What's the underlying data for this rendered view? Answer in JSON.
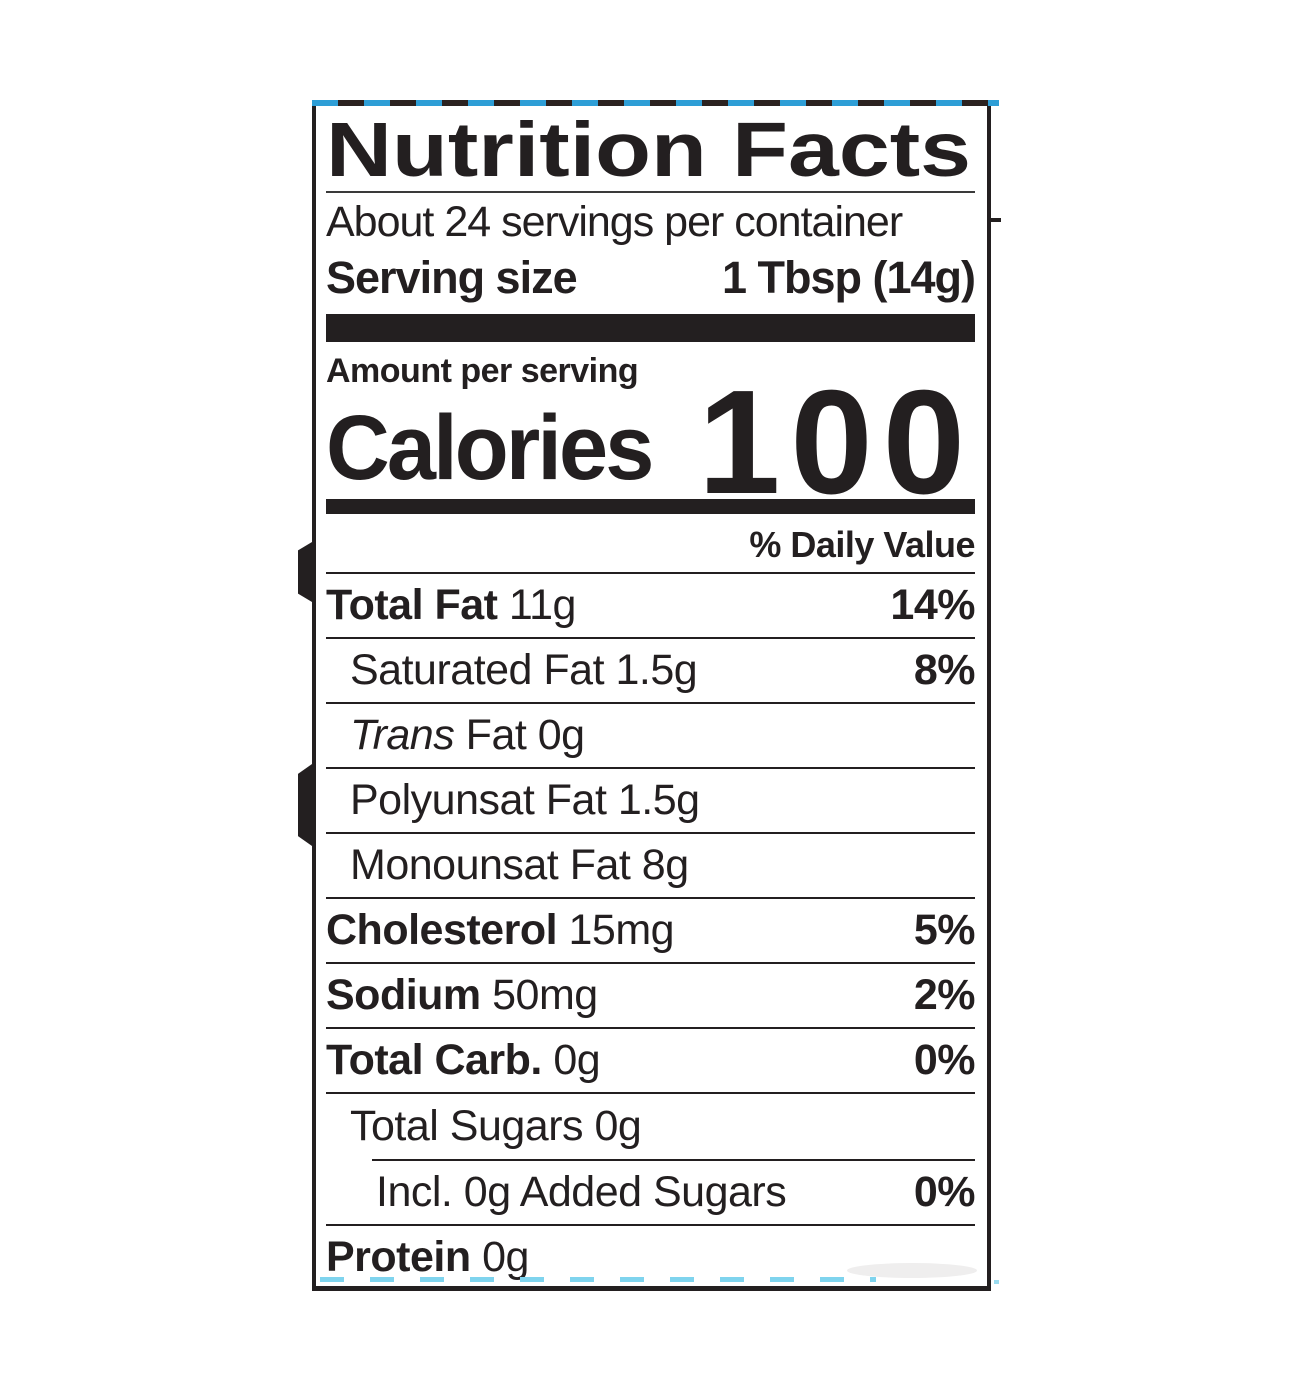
{
  "label": {
    "title": "Nutrition Facts",
    "servings_per_container": "About 24 servings per container",
    "serving_size_label": "Serving size",
    "serving_size_value": "1 Tbsp (14g)",
    "amount_per_serving": "Amount per serving",
    "calories_label": "Calories",
    "calories_value": "100",
    "daily_value_header": "% Daily Value",
    "rows": [
      {
        "bold": "Total Fat",
        "italic": "",
        "text": " 11g",
        "dv": "14%"
      },
      {
        "bold": "",
        "italic": "",
        "text": "Saturated Fat 1.5g",
        "dv": "8%"
      },
      {
        "bold": "",
        "italic": "Trans",
        "text": " Fat 0g",
        "dv": ""
      },
      {
        "bold": "",
        "italic": "",
        "text": "Polyunsat Fat 1.5g",
        "dv": ""
      },
      {
        "bold": "",
        "italic": "",
        "text": "Monounsat Fat 8g",
        "dv": ""
      },
      {
        "bold": "Cholesterol",
        "italic": "",
        "text": " 15mg",
        "dv": "5%"
      },
      {
        "bold": "Sodium",
        "italic": "",
        "text": " 50mg",
        "dv": "2%"
      },
      {
        "bold": "Total Carb.",
        "italic": "",
        "text": " 0g",
        "dv": "0%"
      },
      {
        "bold": "",
        "italic": "",
        "text": "Total Sugars 0g",
        "dv": ""
      },
      {
        "bold": "",
        "italic": "",
        "text": "Incl. 0g Added Sugars",
        "dv": "0%"
      },
      {
        "bold": "Protein",
        "italic": "",
        "text": " 0g",
        "dv": ""
      }
    ],
    "colors": {
      "ink": "#231f20",
      "top_cutline_blue": "#2e9ed6",
      "top_cutline_dark": "#2b2220",
      "bottom_cutline_cyan": "#7fd4ee"
    }
  }
}
